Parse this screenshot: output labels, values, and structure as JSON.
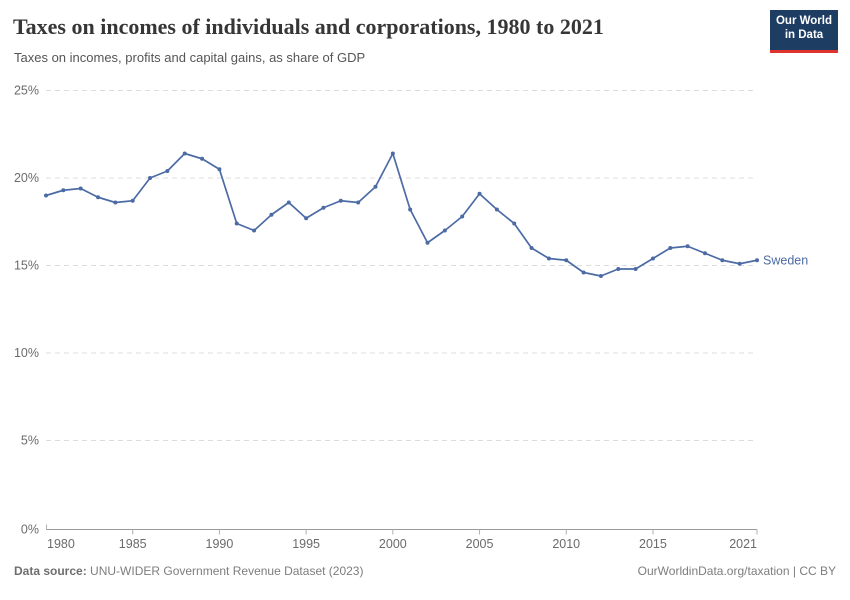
{
  "header": {
    "title": "Taxes on incomes of individuals and corporations, 1980 to 2021",
    "subtitle": "Taxes on incomes, profits and capital gains, as share of GDP",
    "logo": {
      "line1": "Our World",
      "line2": "in Data"
    }
  },
  "chart_data": {
    "type": "line",
    "title": "Taxes on incomes of individuals and corporations, 1980 to 2021",
    "subtitle": "Taxes on incomes, profits and capital gains, as share of GDP",
    "xlabel": "",
    "ylabel": "",
    "xlim": [
      1980,
      2021
    ],
    "ylim": [
      0,
      25
    ],
    "grid": "horizontal-dashed",
    "legend_position": "end-of-line-label",
    "y_ticks": [
      0,
      5,
      10,
      15,
      20,
      25
    ],
    "y_tick_suffix": "%",
    "x_ticks": [
      1980,
      1985,
      1990,
      1995,
      2000,
      2005,
      2010,
      2015,
      2021
    ],
    "x": [
      1980,
      1981,
      1982,
      1983,
      1984,
      1985,
      1986,
      1987,
      1988,
      1989,
      1990,
      1991,
      1992,
      1993,
      1994,
      1995,
      1996,
      1997,
      1998,
      1999,
      2000,
      2001,
      2002,
      2003,
      2004,
      2005,
      2006,
      2007,
      2008,
      2009,
      2010,
      2011,
      2012,
      2013,
      2014,
      2015,
      2016,
      2017,
      2018,
      2019,
      2020,
      2021
    ],
    "series": [
      {
        "name": "Sweden",
        "color": "#4C6BA5",
        "values": [
          19.0,
          19.3,
          19.4,
          18.9,
          18.6,
          18.7,
          20.0,
          20.4,
          21.4,
          21.1,
          20.5,
          17.4,
          17.0,
          17.9,
          18.6,
          17.7,
          18.3,
          18.7,
          18.6,
          19.5,
          21.4,
          18.2,
          16.3,
          17.0,
          17.8,
          19.1,
          18.2,
          17.4,
          16.0,
          15.4,
          15.3,
          14.6,
          14.4,
          14.8,
          14.8,
          15.4,
          16.0,
          16.1,
          15.7,
          15.3,
          15.1,
          15.3
        ]
      }
    ]
  },
  "colors": {
    "line": "#4C6BA5",
    "gridline": "#DCDCDC",
    "axis": "#9A9A9A",
    "tick": "#B0B0B0",
    "tick_label": "#6B6B6B",
    "logo_bg": "#1D3D63",
    "logo_red": "#DF342D"
  },
  "footer": {
    "datasource_label": "Data source:",
    "datasource_text": " UNU-WIDER Government Revenue Dataset (2023)",
    "link": "OurWorldinData.org/taxation",
    "separator": " | ",
    "license": "CC BY"
  }
}
